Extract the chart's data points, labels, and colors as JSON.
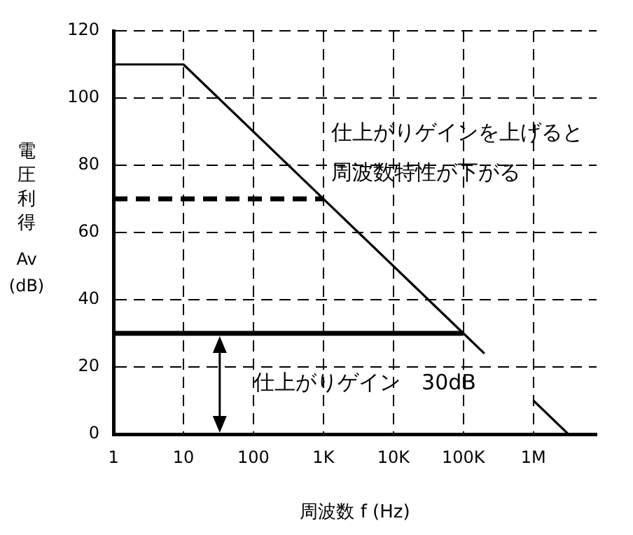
{
  "chart_data": {
    "type": "line",
    "xlabel": "周波数 f (Hz)",
    "ylabel": "電圧利得\nAv\n(dB)",
    "log": "x",
    "xlim": [
      1,
      8000000
    ],
    "xticks": [
      1,
      10,
      100,
      {
        "value": 1000,
        "label": "1K"
      },
      {
        "value": 10000,
        "label": "10K"
      },
      {
        "value": 100000,
        "label": "100K"
      },
      {
        "value": 1000000,
        "label": "1M"
      }
    ],
    "ylim": [
      0,
      120
    ],
    "yticks": [
      0,
      20,
      40,
      60,
      80,
      100,
      120
    ],
    "grid": true,
    "legend": false,
    "marker": "none",
    "series": [
      {
        "x": [
          1,
          10,
          100000,
          200000,
          500000,
          1000000,
          3160000
        ],
        "values": [
          110,
          110,
          30,
          24,
          null,
          10,
          0
        ],
        "color": "#000000"
      },
      {
        "x": [
          1,
          1000
        ],
        "values": [
          70,
          70
        ],
        "color": "#000000",
        "line_style": "dashed"
      },
      {
        "x": [
          1,
          100000
        ],
        "values": [
          30,
          30
        ],
        "color": "#000000"
      }
    ],
    "annotations": [
      "仕上がりゲインを上げると",
      "周波数特性が下がる",
      "仕上がりゲイン　30dB"
    ]
  }
}
